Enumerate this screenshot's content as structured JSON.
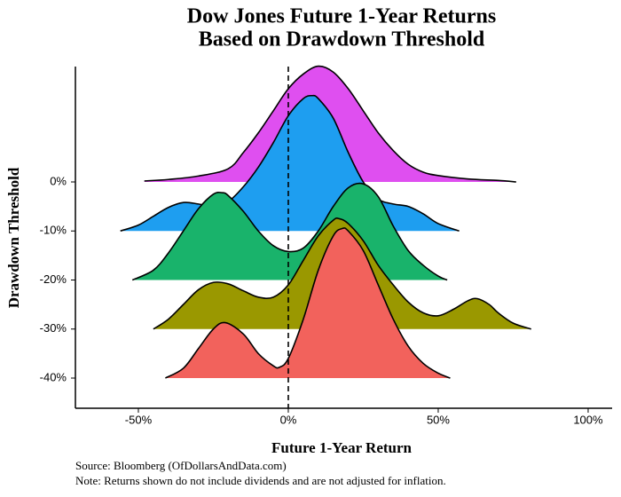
{
  "chart_data": {
    "type": "ridgeline",
    "title": [
      "Dow Jones Future 1-Year Returns",
      "Based on Drawdown Threshold"
    ],
    "xlabel": "Future 1-Year Return",
    "ylabel": "Drawdown Threshold",
    "source": "Source: Bloomberg (OfDollarsAndData.com)",
    "note": "Note: Returns shown do not include dividends and are not adjusted for inflation.",
    "categories": [
      "0%",
      "-10%",
      "-20%",
      "-30%",
      "-40%"
    ],
    "xlim": [
      -71,
      108
    ],
    "xticks": [
      {
        "value": -50,
        "label": "-50%"
      },
      {
        "value": 0,
        "label": "0%"
      },
      {
        "value": 50,
        "label": "50%"
      },
      {
        "value": 100,
        "label": "100%"
      }
    ],
    "vline": 0,
    "series": [
      {
        "color": "#df4ff0",
        "x": [
          -48,
          -40,
          -30,
          -20,
          -15,
          -10,
          -5,
          0,
          5,
          10,
          15,
          20,
          25,
          30,
          35,
          40,
          45,
          50,
          60,
          70,
          76
        ],
        "values": [
          0.02,
          0.05,
          0.12,
          0.27,
          0.6,
          1.0,
          1.45,
          1.9,
          2.2,
          2.36,
          2.24,
          1.9,
          1.45,
          1.0,
          0.64,
          0.36,
          0.2,
          0.13,
          0.06,
          0.03,
          0
        ]
      },
      {
        "color": "#1e9ef0",
        "x": [
          -56,
          -50,
          -45,
          -40,
          -35,
          -30,
          -25,
          -20,
          -15,
          -10,
          -5,
          0,
          5,
          8,
          10,
          15,
          20,
          25,
          30,
          35,
          40,
          45,
          50,
          57
        ],
        "values": [
          0,
          0.12,
          0.3,
          0.48,
          0.58,
          0.55,
          0.5,
          0.6,
          0.9,
          1.3,
          1.8,
          2.35,
          2.7,
          2.76,
          2.7,
          2.3,
          1.6,
          1.0,
          0.65,
          0.55,
          0.5,
          0.35,
          0.15,
          0
        ]
      },
      {
        "color": "#19b36b",
        "x": [
          -52,
          -45,
          -40,
          -35,
          -30,
          -25,
          -22,
          -20,
          -15,
          -10,
          -5,
          0,
          5,
          10,
          15,
          20,
          25,
          30,
          35,
          40,
          45,
          50,
          53
        ],
        "values": [
          0,
          0.2,
          0.55,
          1.0,
          1.45,
          1.75,
          1.78,
          1.72,
          1.4,
          1.0,
          0.7,
          0.58,
          0.65,
          1.0,
          1.5,
          1.88,
          1.96,
          1.7,
          1.1,
          0.6,
          0.3,
          0.08,
          0
        ]
      },
      {
        "color": "#9a9800",
        "x": [
          -45,
          -40,
          -35,
          -30,
          -25,
          -20,
          -15,
          -10,
          -5,
          0,
          5,
          10,
          15,
          17,
          20,
          25,
          30,
          35,
          40,
          45,
          50,
          55,
          60,
          63,
          67,
          70,
          75,
          81
        ],
        "values": [
          0,
          0.2,
          0.5,
          0.8,
          0.95,
          0.92,
          0.78,
          0.65,
          0.65,
          0.9,
          1.4,
          1.9,
          2.22,
          2.25,
          2.15,
          1.8,
          1.3,
          0.9,
          0.55,
          0.33,
          0.27,
          0.4,
          0.58,
          0.62,
          0.5,
          0.33,
          0.12,
          0
        ]
      },
      {
        "color": "#f2625c",
        "x": [
          -41,
          -35,
          -30,
          -25,
          -21,
          -15,
          -10,
          -5,
          -3,
          0,
          5,
          10,
          15,
          18,
          20,
          25,
          30,
          35,
          40,
          45,
          50,
          54
        ],
        "values": [
          0,
          0.2,
          0.6,
          1.0,
          1.13,
          0.9,
          0.5,
          0.25,
          0.22,
          0.4,
          1.2,
          2.2,
          2.9,
          3.05,
          3.0,
          2.6,
          1.9,
          1.2,
          0.65,
          0.3,
          0.1,
          0
        ]
      }
    ]
  }
}
